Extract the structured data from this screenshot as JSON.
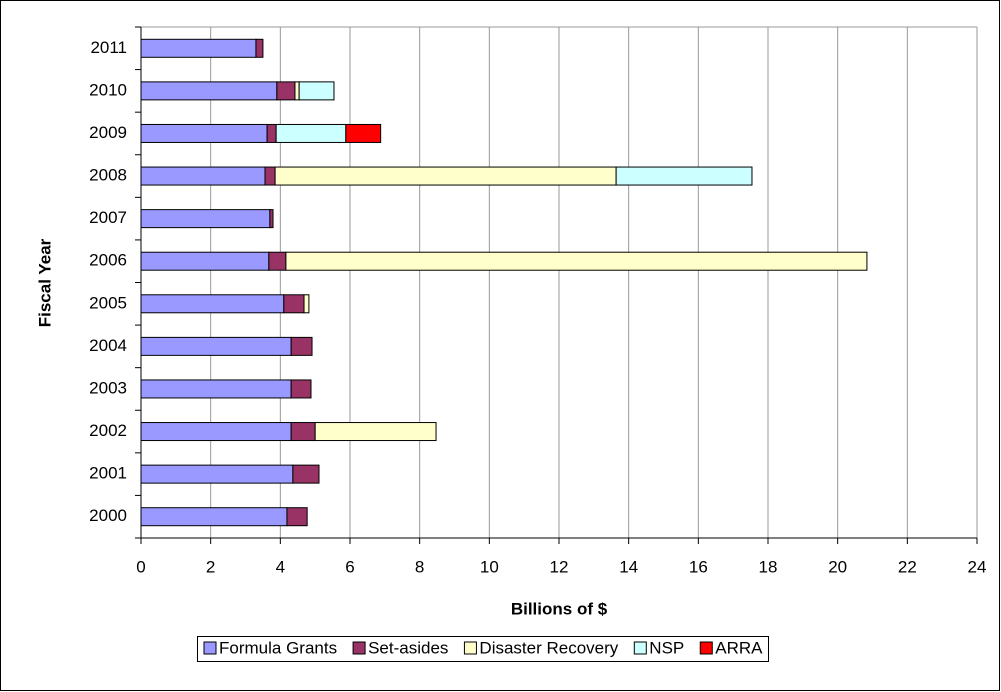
{
  "chart_data": {
    "type": "stacked-barh",
    "x_label": "Billions of $",
    "y_label": "Fiscal Year",
    "categories": [
      "2000",
      "2001",
      "2002",
      "2003",
      "2004",
      "2005",
      "2006",
      "2007",
      "2008",
      "2009",
      "2010",
      "2011"
    ],
    "series": [
      {
        "name": "Formula Grants",
        "color": "#9999ff",
        "values": [
          4.19,
          4.36,
          4.31,
          4.31,
          4.31,
          4.1,
          3.67,
          3.7,
          3.56,
          3.62,
          3.9,
          3.3
        ]
      },
      {
        "name": "Set-asides",
        "color": "#993366",
        "values": [
          0.58,
          0.75,
          0.69,
          0.57,
          0.6,
          0.58,
          0.49,
          0.09,
          0.29,
          0.26,
          0.52,
          0.2
        ]
      },
      {
        "name": "Disaster Recovery",
        "color": "#ffffcc",
        "values": [
          0,
          0,
          3.47,
          0,
          0,
          0.14,
          16.68,
          0,
          9.79,
          0,
          0.12,
          0
        ]
      },
      {
        "name": "NSP",
        "color": "#ccffff",
        "values": [
          0,
          0,
          0,
          0,
          0,
          0,
          0,
          0,
          3.9,
          2.0,
          1.0,
          0
        ]
      },
      {
        "name": "ARRA",
        "color": "#ff0000",
        "values": [
          0,
          0,
          0,
          0,
          0,
          0,
          0,
          0,
          0,
          1.0,
          0,
          0
        ]
      }
    ],
    "xlim": [
      0,
      24
    ],
    "xticks": [
      0,
      2,
      4,
      6,
      8,
      10,
      12,
      14,
      16,
      18,
      20,
      22,
      24
    ],
    "grid": true,
    "legend": "bottom"
  }
}
